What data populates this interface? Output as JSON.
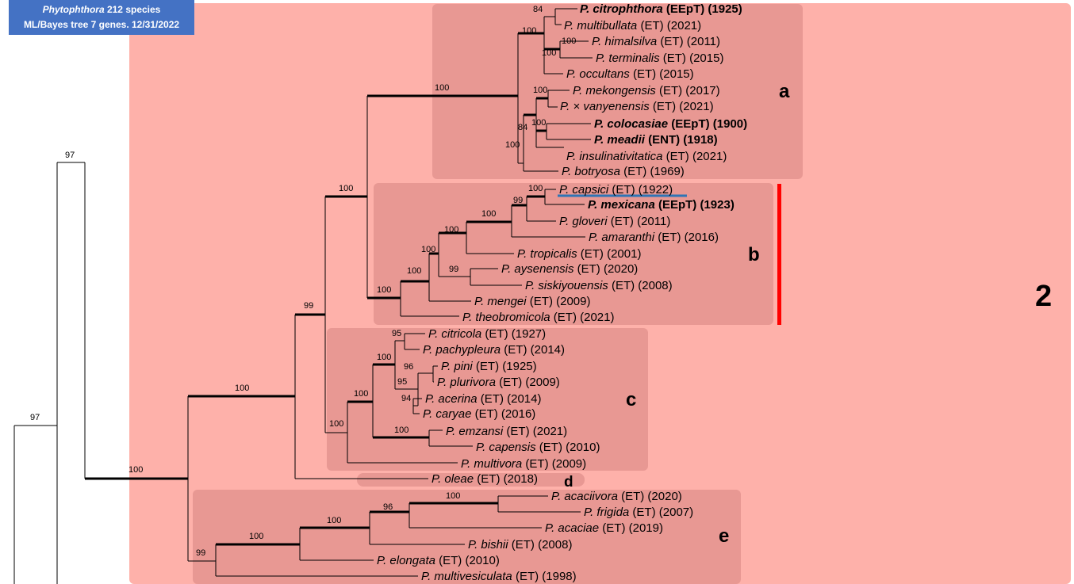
{
  "header": {
    "genus": "Phytophthora",
    "line1_rest": " 212 species",
    "line2": "ML/Bayes tree 7 genes. 12/31/2022"
  },
  "clade_label": "2",
  "subclades": {
    "a": "a",
    "b": "b",
    "c": "c",
    "d": "d",
    "e": "e"
  },
  "taxa": [
    {
      "id": "citrophthora",
      "name": "P. citrophthora",
      "info": " (EEpT) (1925)",
      "bold": true
    },
    {
      "id": "multibullata",
      "name": "P. multibullata",
      "info": " (ET) (2021)",
      "bold": false
    },
    {
      "id": "himalsilva",
      "name": "P. himalsilva",
      "info": " (ET) (2011)",
      "bold": false
    },
    {
      "id": "terminalis",
      "name": "P. terminalis",
      "info": " (ET) (2015)",
      "bold": false
    },
    {
      "id": "occultans",
      "name": "P. occultans",
      "info": " (ET) (2015)",
      "bold": false
    },
    {
      "id": "mekongensis",
      "name": "P. mekongensis",
      "info": " (ET) (2017)",
      "bold": false
    },
    {
      "id": "vanyenensis",
      "name": "P. × vanyenensis",
      "info": " (ET) (2021)",
      "bold": false
    },
    {
      "id": "colocasiae",
      "name": "P. colocasiae",
      "info": " (EEpT) (1900)",
      "bold": true
    },
    {
      "id": "meadii",
      "name": "P. meadii",
      "info": " (ENT) (1918)",
      "bold": true
    },
    {
      "id": "insulinativitatica",
      "name": "P. insulinativitatica",
      "info": " (ET) (2021)",
      "bold": false
    },
    {
      "id": "botryosa",
      "name": "P. botryosa",
      "info": " (ET) (1969)",
      "bold": false
    },
    {
      "id": "capsici",
      "name": "P. capsici",
      "info": " (ET) (1922)",
      "bold": false
    },
    {
      "id": "mexicana",
      "name": "P. mexicana",
      "info": " (EEpT) (1923)",
      "bold": true
    },
    {
      "id": "gloveri",
      "name": "P. gloveri",
      "info": " (ET) (2011)",
      "bold": false
    },
    {
      "id": "amaranthi",
      "name": "P. amaranthi",
      "info": " (ET) (2016)",
      "bold": false
    },
    {
      "id": "tropicalis",
      "name": "P. tropicalis",
      "info": " (ET) (2001)",
      "bold": false
    },
    {
      "id": "aysenensis",
      "name": "P. aysenensis",
      "info": " (ET) (2020)",
      "bold": false
    },
    {
      "id": "siskiyouensis",
      "name": "P. siskiyouensis",
      "info": " (ET) (2008)",
      "bold": false
    },
    {
      "id": "mengei",
      "name": "P. mengei",
      "info": " (ET) (2009)",
      "bold": false
    },
    {
      "id": "theobromicola",
      "name": "P. theobromicola",
      "info": " (ET) (2021)",
      "bold": false
    },
    {
      "id": "citricola",
      "name": "P. citricola",
      "info": " (ET) (1927)",
      "bold": false
    },
    {
      "id": "pachypleura",
      "name": "P. pachypleura",
      "info": " (ET) (2014)",
      "bold": false
    },
    {
      "id": "pini",
      "name": "P. pini",
      "info": " (ET) (1925)",
      "bold": false
    },
    {
      "id": "plurivora",
      "name": "P. plurivora",
      "info": " (ET) (2009)",
      "bold": false
    },
    {
      "id": "acerina",
      "name": "P. acerina",
      "info": " (ET) (2014)",
      "bold": false
    },
    {
      "id": "caryae",
      "name": "P. caryae",
      "info": " (ET) (2016)",
      "bold": false
    },
    {
      "id": "emzansi",
      "name": "P. emzansi",
      "info": " (ET) (2021)",
      "bold": false
    },
    {
      "id": "capensis",
      "name": "P. capensis",
      "info": " (ET) (2010)",
      "bold": false
    },
    {
      "id": "multivora",
      "name": "P. multivora",
      "info": " (ET) (2009)",
      "bold": false
    },
    {
      "id": "oleae",
      "name": "P. oleae",
      "info": " (ET) (2018)",
      "bold": false
    },
    {
      "id": "acaciivora",
      "name": "P. acaciivora",
      "info": " (ET) (2020)",
      "bold": false
    },
    {
      "id": "frigida",
      "name": "P. frigida",
      "info": " (ET) (2007)",
      "bold": false
    },
    {
      "id": "acaciae",
      "name": "P. acaciae",
      "info": " (ET) (2019)",
      "bold": false
    },
    {
      "id": "bishii",
      "name": "P. bishii",
      "info": " (ET) (2008)",
      "bold": false
    },
    {
      "id": "elongata",
      "name": "P. elongata",
      "info": " (ET) (2010)",
      "bold": false
    },
    {
      "id": "multivesiculata",
      "name": "P. multivesiculata",
      "info": " (ET) (1998)",
      "bold": false
    }
  ],
  "support_values": {
    "root97": "97",
    "outer97": "97",
    "n100_clade2": "100",
    "n100_abcd": "100",
    "n99_abc": "99",
    "n100_ab": "100",
    "n100_a": "100",
    "n100_a1": "100",
    "n84_top": "84",
    "n100_him": "100",
    "n100_ht": "100",
    "n100_mek": "100",
    "n84_a2": "84",
    "n100_col": "100",
    "n100_ins": "100",
    "n100_b": "100",
    "n100_b2": "100",
    "n100_b3": "100",
    "n100_b4": "100",
    "n99_cap": "99",
    "n100_cap": "100",
    "n99_ays": "99",
    "n100_c": "100",
    "n100_c2": "100",
    "n100_c3": "100",
    "n95_cit": "95",
    "n96_pini": "96",
    "n95_pp": "95",
    "n94_ac": "94",
    "n100_emz": "100",
    "n99_e": "99",
    "n100_e2": "100",
    "n100_e3": "100",
    "n96_e4": "96",
    "n100_e5": "100"
  },
  "colors": {
    "clade_bg": "#feb1aa",
    "subclade_bg": "#e89893",
    "red_bar": "#ff0000",
    "underline": "#2e75b6",
    "title_bg": "#4472c4"
  }
}
